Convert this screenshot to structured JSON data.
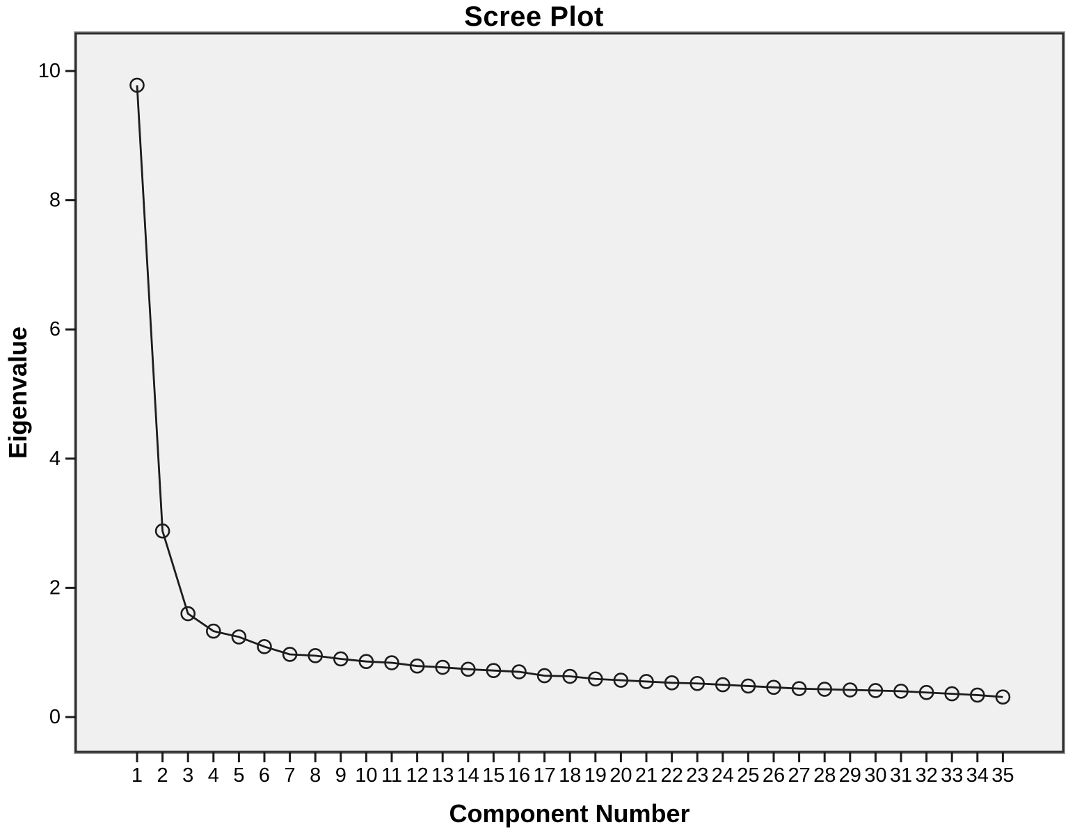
{
  "chart_data": {
    "type": "line",
    "title": "Scree Plot",
    "xlabel": "Component Number",
    "ylabel": "Eigenvalue",
    "x": [
      1,
      2,
      3,
      4,
      5,
      6,
      7,
      8,
      9,
      10,
      11,
      12,
      13,
      14,
      15,
      16,
      17,
      18,
      19,
      20,
      21,
      22,
      23,
      24,
      25,
      26,
      27,
      28,
      29,
      30,
      31,
      32,
      33,
      34,
      35
    ],
    "values": [
      9.78,
      2.88,
      1.6,
      1.33,
      1.24,
      1.09,
      0.97,
      0.95,
      0.9,
      0.86,
      0.84,
      0.79,
      0.77,
      0.74,
      0.72,
      0.7,
      0.64,
      0.63,
      0.59,
      0.57,
      0.55,
      0.53,
      0.52,
      0.5,
      0.48,
      0.46,
      0.44,
      0.43,
      0.42,
      0.41,
      0.4,
      0.38,
      0.36,
      0.34,
      0.31
    ],
    "yticks": [
      0,
      2,
      4,
      6,
      8,
      10
    ],
    "ylim": [
      -0.55,
      10.6
    ],
    "xlim": [
      0,
      37.4
    ],
    "grid": false,
    "legend": "none",
    "marker": "open-circle",
    "colors": {
      "line": "#1c1c1c",
      "marker_stroke": "#1c1c1c",
      "plot_bg": "#f0f0f0",
      "border": "#2e2e2e",
      "tick": "#1c1c1c",
      "text": "#000000",
      "page_bg": "#ffffff"
    }
  }
}
